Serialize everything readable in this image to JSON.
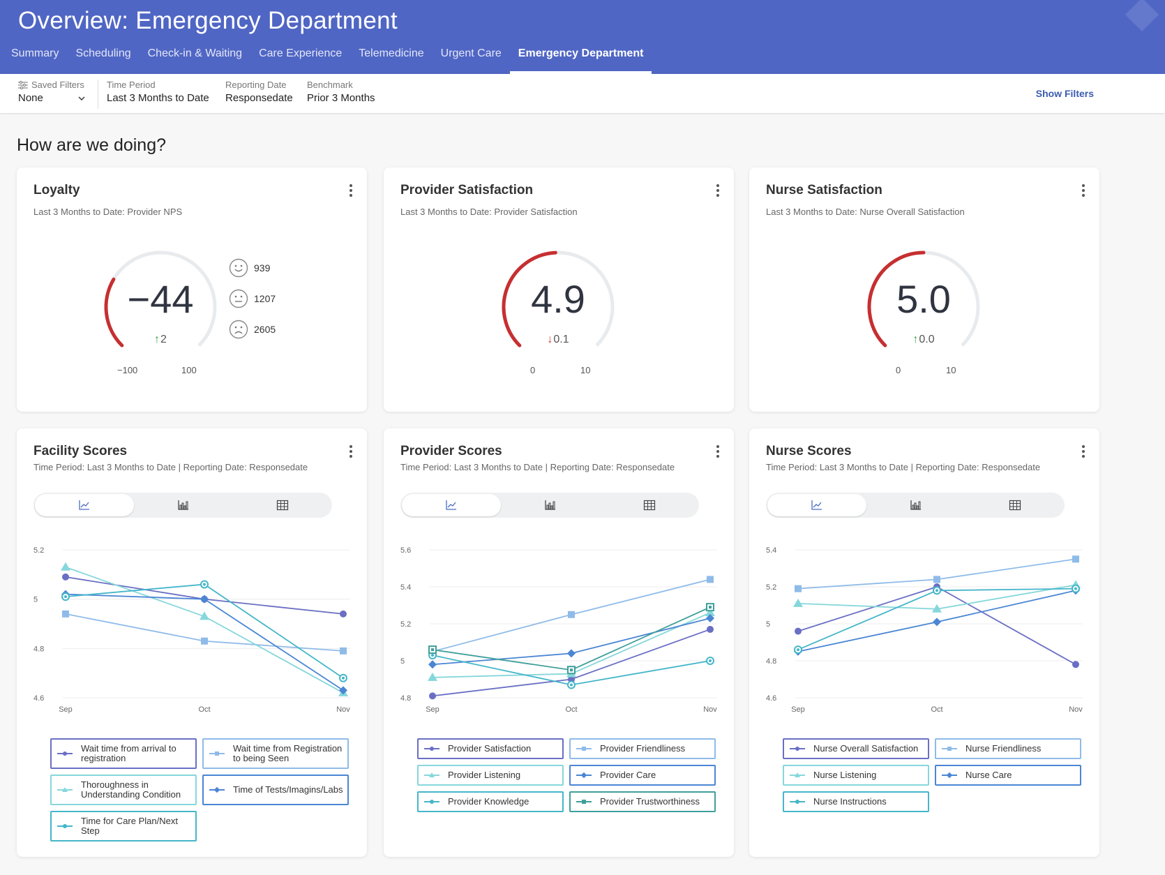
{
  "header": {
    "title": "Overview: Emergency Department",
    "tabs": [
      "Summary",
      "Scheduling",
      "Check-in & Waiting",
      "Care Experience",
      "Telemedicine",
      "Urgent Care",
      "Emergency Department"
    ],
    "active_tab": "Emergency Department"
  },
  "filters": {
    "saved_filters": {
      "label": "Saved Filters",
      "value": "None"
    },
    "time_period": {
      "label": "Time Period",
      "value": "Last 3 Months to Date"
    },
    "reporting_date": {
      "label": "Reporting Date",
      "value": "Responsedate"
    },
    "benchmark": {
      "label": "Benchmark",
      "value": "Prior 3 Months"
    },
    "show_filters": "Show Filters"
  },
  "section_title": "How are we doing?",
  "gauges": [
    {
      "title": "Loyalty",
      "subtitle": "Last 3 Months to Date: Provider NPS",
      "value": "−44",
      "delta": "2",
      "delta_dir": "up",
      "min": "−100",
      "max": "100",
      "fill": 0.28,
      "nps": [
        {
          "icon": "smile-face-icon",
          "count": "939"
        },
        {
          "icon": "neutral-face-icon",
          "count": "1207"
        },
        {
          "icon": "frown-face-icon",
          "count": "2605"
        }
      ]
    },
    {
      "title": "Provider Satisfaction",
      "subtitle": "Last 3 Months to Date: Provider Satisfaction",
      "value": "4.9",
      "delta": "0.1",
      "delta_dir": "down",
      "min": "0",
      "max": "10",
      "fill": 0.49
    },
    {
      "title": "Nurse Satisfaction",
      "subtitle": "Last 3 Months to Date: Nurse Overall Satisfaction",
      "value": "5.0",
      "delta": "0.0",
      "delta_dir": "up",
      "min": "0",
      "max": "10",
      "fill": 0.5
    }
  ],
  "colors": {
    "gauge_fill": "#c62f31",
    "gauge_track": "#e8ebee",
    "delta_up": "#37a245",
    "delta_down": "#d23a3a"
  },
  "chart_data": [
    {
      "type": "line",
      "title": "Facility Scores",
      "subtitle": "Time Period: Last 3 Months to Date | Reporting Date: Responsedate",
      "x": [
        "Sep",
        "Oct",
        "Nov"
      ],
      "ylim": [
        4.6,
        5.2
      ],
      "yticks": [
        "4.6",
        "4.8",
        "5",
        "5.2"
      ],
      "grid": true,
      "series": [
        {
          "name": "Wait time from arrival to registration",
          "values": [
            5.09,
            5.0,
            4.94
          ],
          "color": "#6a6fc4",
          "marker": "circle"
        },
        {
          "name": "Wait time from Registration to being Seen",
          "values": [
            4.94,
            4.83,
            4.79
          ],
          "color": "#8fbbe8",
          "marker": "square"
        },
        {
          "name": "Thoroughness in Understanding Condition",
          "values": [
            5.13,
            4.93,
            4.62
          ],
          "color": "#86d7db",
          "marker": "triangle"
        },
        {
          "name": "Time of Tests/Imagins/Labs",
          "values": [
            5.02,
            5.0,
            4.63
          ],
          "color": "#4a86d4",
          "marker": "diamond"
        },
        {
          "name": "Time for Care Plan/Next Step",
          "values": [
            5.01,
            5.06,
            4.68
          ],
          "color": "#45b6c9",
          "marker": "target"
        }
      ]
    },
    {
      "type": "line",
      "title": "Provider Scores",
      "subtitle": "Time Period: Last 3 Months to Date | Reporting Date: Responsedate",
      "x": [
        "Sep",
        "Oct",
        "Nov"
      ],
      "ylim": [
        4.8,
        5.6
      ],
      "yticks": [
        "4.8",
        "5",
        "5.2",
        "5.4",
        "5.6"
      ],
      "grid": true,
      "series": [
        {
          "name": "Provider Satisfaction",
          "values": [
            4.81,
            4.9,
            5.17
          ],
          "color": "#6a6fc4",
          "marker": "circle"
        },
        {
          "name": "Provider Friendliness",
          "values": [
            5.05,
            5.25,
            5.44
          ],
          "color": "#8fbbe8",
          "marker": "square"
        },
        {
          "name": "Provider Listening",
          "values": [
            4.91,
            4.93,
            5.26
          ],
          "color": "#86d7db",
          "marker": "triangle"
        },
        {
          "name": "Provider Care",
          "values": [
            4.98,
            5.04,
            5.23
          ],
          "color": "#4a86d4",
          "marker": "diamond"
        },
        {
          "name": "Provider Knowledge",
          "values": [
            5.03,
            4.87,
            5.0
          ],
          "color": "#45b6c9",
          "marker": "target"
        },
        {
          "name": "Provider Trustworthiness",
          "values": [
            5.06,
            4.95,
            5.29
          ],
          "color": "#3f9f9a",
          "marker": "boxsquare"
        }
      ]
    },
    {
      "type": "line",
      "title": "Nurse Scores",
      "subtitle": "Time Period: Last 3 Months to Date | Reporting Date: Responsedate",
      "x": [
        "Sep",
        "Oct",
        "Nov"
      ],
      "ylim": [
        4.6,
        5.4
      ],
      "yticks": [
        "4.6",
        "4.8",
        "5",
        "5.2",
        "5.4"
      ],
      "grid": true,
      "series": [
        {
          "name": "Nurse Overall Satisfaction",
          "values": [
            4.96,
            5.2,
            4.78
          ],
          "color": "#6a6fc4",
          "marker": "circle"
        },
        {
          "name": "Nurse Friendliness",
          "values": [
            5.19,
            5.24,
            5.35
          ],
          "color": "#8fbbe8",
          "marker": "square"
        },
        {
          "name": "Nurse Listening",
          "values": [
            5.11,
            5.08,
            5.21
          ],
          "color": "#86d7db",
          "marker": "triangle"
        },
        {
          "name": "Nurse Care",
          "values": [
            4.85,
            5.01,
            5.18
          ],
          "color": "#4a86d4",
          "marker": "diamond"
        },
        {
          "name": "Nurse Instructions",
          "values": [
            4.86,
            5.18,
            5.19
          ],
          "color": "#45b6c9",
          "marker": "target"
        }
      ]
    }
  ],
  "icons": {
    "filter": "sliders-icon",
    "dropdown": "chevron-down-icon",
    "more": "kebab-menu-icon",
    "line_view": "line-chart-icon",
    "bar_view": "bar-chart-icon",
    "table_view": "table-grid-icon"
  }
}
